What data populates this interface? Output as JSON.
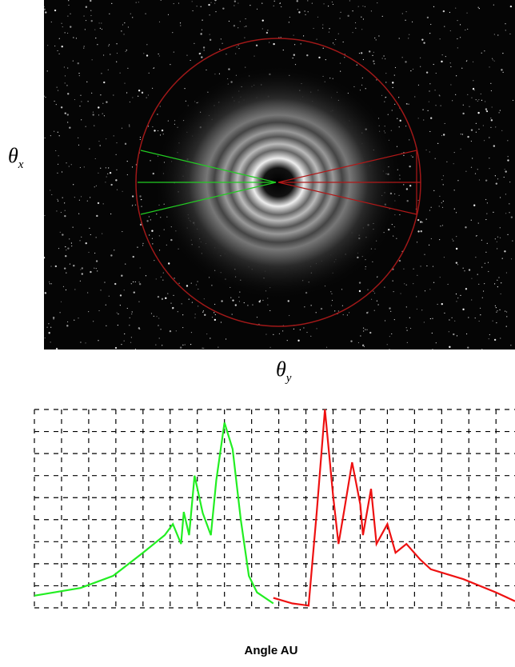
{
  "image_labels": {
    "x_axis": {
      "symbol": "θ",
      "subscript": "y"
    },
    "y_axis": {
      "symbol": "θ",
      "subscript": "x"
    }
  },
  "chart_data": {
    "type": "line",
    "xlabel": "Angle AU",
    "xlim": [
      0,
      17.7
    ],
    "ylim": [
      0,
      9
    ],
    "xticks": [
      0,
      1,
      2,
      3,
      4,
      5,
      6,
      7,
      8,
      9,
      10,
      11,
      12,
      13,
      14,
      15,
      16,
      17
    ],
    "yticks": [
      0,
      1,
      2,
      3,
      4,
      5,
      6,
      7,
      8,
      9
    ],
    "grid": true,
    "series": [
      {
        "color": "#22ee22",
        "x": [
          0,
          1.7,
          2.9,
          4.0,
          4.8,
          5.1,
          5.4,
          5.5,
          5.7,
          5.9,
          6.2,
          6.5,
          6.7,
          7.0,
          7.3,
          7.6,
          7.9,
          8.2,
          8.8
        ],
        "values": [
          0.55,
          0.9,
          1.45,
          2.5,
          3.3,
          3.8,
          2.9,
          4.35,
          3.3,
          6.0,
          4.3,
          3.3,
          5.8,
          8.4,
          7.2,
          4.0,
          1.45,
          0.7,
          0.2
        ]
      },
      {
        "color": "#ee1111",
        "x": [
          8.8,
          9.5,
          10.1,
          10.4,
          10.7,
          11.0,
          11.2,
          11.4,
          11.7,
          12.0,
          12.1,
          12.4,
          12.6,
          13.0,
          13.3,
          13.7,
          14.2,
          14.6,
          15.8,
          17.0,
          17.7
        ],
        "values": [
          0.45,
          0.2,
          0.1,
          4.35,
          9.0,
          5.1,
          2.9,
          4.35,
          6.6,
          4.7,
          3.3,
          5.4,
          2.9,
          3.8,
          2.5,
          2.9,
          2.2,
          1.75,
          1.3,
          0.7,
          0.3
        ]
      }
    ]
  }
}
